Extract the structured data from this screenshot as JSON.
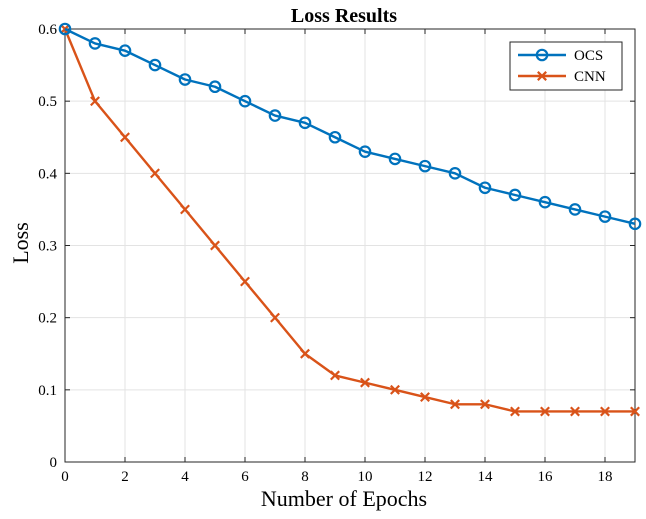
{
  "chart_data": {
    "type": "line",
    "title": "Loss Results",
    "xlabel": "Number of Epochs",
    "ylabel": "Loss",
    "xlim": [
      0,
      19
    ],
    "ylim": [
      0,
      0.6
    ],
    "xticks": [
      0,
      2,
      4,
      6,
      8,
      10,
      12,
      14,
      16,
      18
    ],
    "yticks": [
      0,
      0.1,
      0.2,
      0.3,
      0.4,
      0.5,
      0.6
    ],
    "ytick_labels": [
      "0",
      "0.1",
      "0.2",
      "0.3",
      "0.4",
      "0.5",
      "0.6"
    ],
    "grid": true,
    "legend_position": "top-right",
    "x": [
      0,
      1,
      2,
      3,
      4,
      5,
      6,
      7,
      8,
      9,
      10,
      11,
      12,
      13,
      14,
      15,
      16,
      17,
      18,
      19
    ],
    "series": [
      {
        "name": "OCS",
        "color": "#0072BD",
        "marker": "circle",
        "values": [
          0.6,
          0.58,
          0.57,
          0.55,
          0.53,
          0.52,
          0.5,
          0.48,
          0.47,
          0.45,
          0.43,
          0.42,
          0.41,
          0.4,
          0.38,
          0.37,
          0.36,
          0.35,
          0.34,
          0.33
        ]
      },
      {
        "name": "CNN",
        "color": "#D95319",
        "marker": "x",
        "values": [
          0.6,
          0.5,
          0.45,
          0.4,
          0.35,
          0.3,
          0.25,
          0.2,
          0.15,
          0.12,
          0.11,
          0.1,
          0.09,
          0.08,
          0.08,
          0.07,
          0.07,
          0.07,
          0.07,
          0.07
        ]
      }
    ]
  }
}
